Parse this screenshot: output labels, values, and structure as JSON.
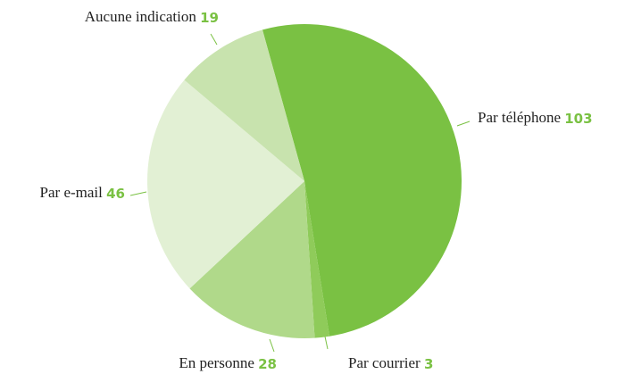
{
  "chart_data": {
    "type": "pie",
    "categories": [
      "Par téléphone",
      "Par courrier",
      "En personne",
      "Par e-mail",
      "Aucune indication"
    ],
    "values": [
      103,
      3,
      28,
      46,
      19
    ],
    "colors": [
      "#7ac143",
      "#8fcb5a",
      "#b0d98a",
      "#e2f0d4",
      "#c8e3ae"
    ]
  }
}
